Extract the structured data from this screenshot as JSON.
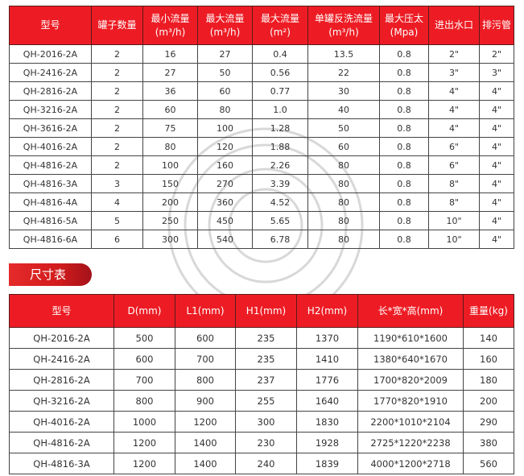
{
  "spec_table": {
    "headers": [
      {
        "line1": "型号",
        "line2": ""
      },
      {
        "line1": "罐子数量",
        "line2": ""
      },
      {
        "line1": "最小流量",
        "line2": "(m³/h)"
      },
      {
        "line1": "最大流量",
        "line2": "(m³/h)"
      },
      {
        "line1": "最大流量",
        "line2": "(m²)"
      },
      {
        "line1": "单罐反洗流量",
        "line2": "(m³/h)"
      },
      {
        "line1": "最大压太",
        "line2": "(Mpa)"
      },
      {
        "line1": "进出水口",
        "line2": ""
      },
      {
        "line1": "排污管",
        "line2": ""
      }
    ],
    "rows": [
      [
        "QH-2016-2A",
        "2",
        "16",
        "27",
        "0.4",
        "13.5",
        "0.8",
        "2\"",
        "2\""
      ],
      [
        "QH-2416-2A",
        "2",
        "27",
        "50",
        "0.56",
        "22",
        "0.8",
        "3\"",
        "3\""
      ],
      [
        "QH-2816-2A",
        "2",
        "36",
        "60",
        "0.77",
        "30",
        "0.8",
        "4\"",
        "4\""
      ],
      [
        "QH-3216-2A",
        "2",
        "60",
        "80",
        "1.0",
        "40",
        "0.8",
        "4\"",
        "4\""
      ],
      [
        "QH-3616-2A",
        "2",
        "75",
        "100",
        "1.28",
        "50",
        "0.8",
        "4\"",
        "4\""
      ],
      [
        "QH-4016-2A",
        "2",
        "80",
        "120",
        "1.88",
        "60",
        "0.8",
        "6\"",
        "4\""
      ],
      [
        "QH-4816-2A",
        "2",
        "100",
        "160",
        "2.26",
        "80",
        "0.8",
        "6\"",
        "4\""
      ],
      [
        "QH-4816-3A",
        "3",
        "150",
        "270",
        "3.39",
        "80",
        "0.8",
        "8\"",
        "4\""
      ],
      [
        "QH-4816-4A",
        "4",
        "200",
        "360",
        "4.52",
        "80",
        "0.8",
        "8\"",
        "4\""
      ],
      [
        "QH-4816-5A",
        "5",
        "250",
        "450",
        "5.65",
        "80",
        "0.8",
        "10\"",
        "4\""
      ],
      [
        "QH-4816-6A",
        "6",
        "300",
        "540",
        "6.78",
        "80",
        "0.8",
        "10\"",
        "4\""
      ]
    ]
  },
  "dimension_section": {
    "title": "尺寸表"
  },
  "dimension_table": {
    "headers": [
      "型号",
      "D(mm)",
      "L1(mm)",
      "H1(mm)",
      "H2(mm)",
      "长*宽*高(mm)",
      "重量(kg)"
    ],
    "rows": [
      [
        "QH-2016-2A",
        "500",
        "600",
        "235",
        "1370",
        "1190*610*1600",
        "140"
      ],
      [
        "QH-2416-2A",
        "600",
        "700",
        "235",
        "1410",
        "1380*640*1670",
        "160"
      ],
      [
        "QH-2816-2A",
        "700",
        "800",
        "237",
        "1776",
        "1700*820*2009",
        "180"
      ],
      [
        "QH-3216-2A",
        "800",
        "900",
        "255",
        "1640",
        "1770*820*1910",
        "200"
      ],
      [
        "QH-4016-2A",
        "1000",
        "1200",
        "300",
        "1830",
        "2200*1010*2104",
        "290"
      ],
      [
        "QH-4816-2A",
        "1200",
        "1400",
        "230",
        "1928",
        "2725*1220*2238",
        "380"
      ],
      [
        "QH-4816-3A",
        "1200",
        "1400",
        "240",
        "1839",
        "4000*1200*2718",
        "560"
      ]
    ]
  },
  "colors": {
    "header_red": "#ed1c24",
    "border": "#444444"
  }
}
